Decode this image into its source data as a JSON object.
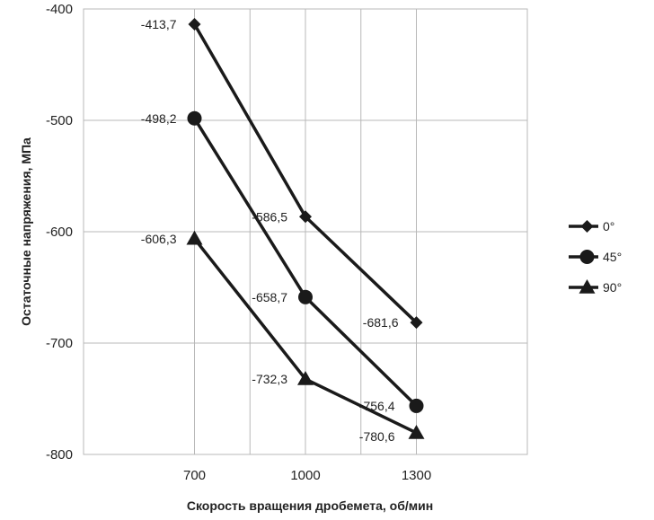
{
  "chart_data": {
    "type": "line",
    "title": "",
    "xlabel": "Скорость вращения дробемета, об/мин",
    "ylabel": "Остаточные напряжения, МПа",
    "categories": [
      "700",
      "1000",
      "1300"
    ],
    "ylim": [
      -800,
      -400
    ],
    "yticks": [
      -400,
      -500,
      -600,
      -700,
      -800
    ],
    "grid": true,
    "legend_position": "right",
    "series": [
      {
        "name": "0°",
        "marker": "diamond",
        "values": [
          -413.7,
          -586.5,
          -681.6
        ],
        "labels": [
          "-413,7",
          "-586,5",
          "-681,6"
        ]
      },
      {
        "name": "45°",
        "marker": "circle",
        "values": [
          -498.2,
          -658.7,
          -756.4
        ],
        "labels": [
          "-498,2",
          "-658,7",
          "-756,4"
        ]
      },
      {
        "name": "90°",
        "marker": "triangle",
        "values": [
          -606.3,
          -732.3,
          -780.6
        ],
        "labels": [
          "-606,3",
          "-732,3",
          "-780,6"
        ]
      }
    ],
    "line_color": "#1a1a1a",
    "grid_color": "#b8b8b8"
  }
}
